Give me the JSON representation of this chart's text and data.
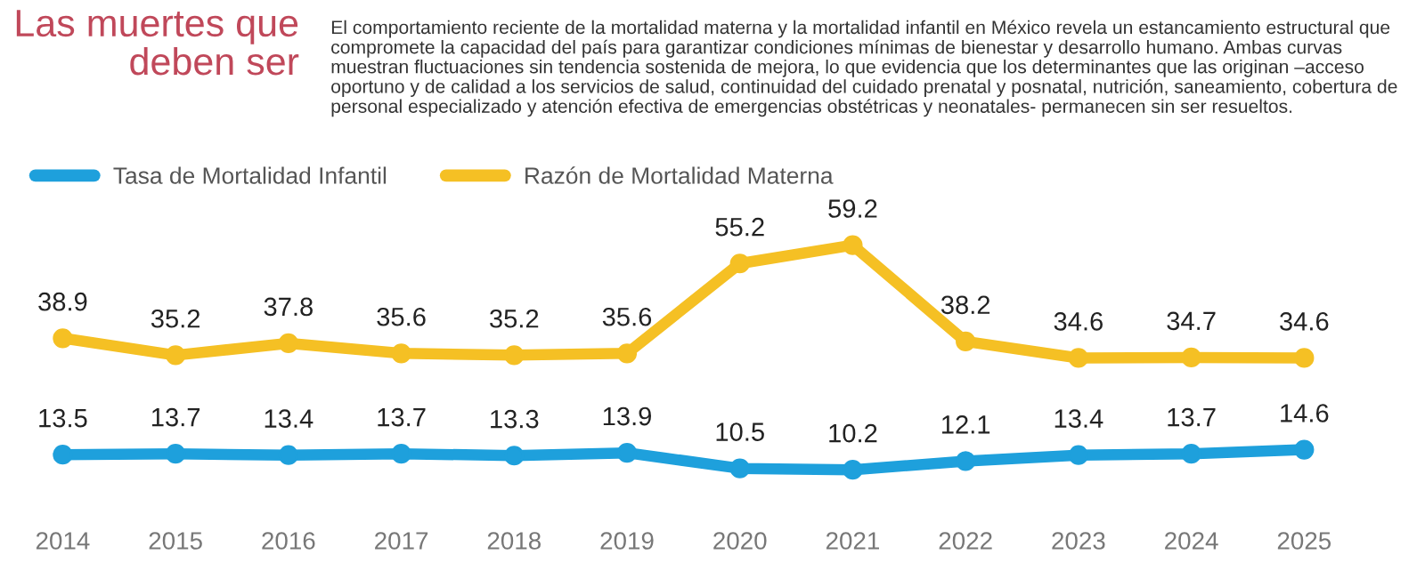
{
  "chart_data": {
    "type": "line",
    "title": "Las muertes que\ndeben ser",
    "annotations": [
      "El comportamiento reciente de la mortalidad materna y la mortalidad infantil en México revela un estancamiento estructural que compromete la capacidad del país para garantizar condiciones mínimas de bienestar y desarrollo humano. Ambas curvas muestran fluctuaciones sin tendencia sostenida de mejora, lo que evidencia que los determinantes que las originan –acceso oportuno y de calidad a los servicios de salud, continuidad del cuidado prenatal y posnatal, nutrición, saneamiento, cobertura de personal especializado y atención efectiva de emergencias obstétricas y neonatales- permanecen sin ser resueltos."
    ],
    "categories": [
      "2014",
      "2015",
      "2016",
      "2017",
      "2018",
      "2019",
      "2020",
      "2021",
      "2022",
      "2023",
      "2024",
      "2025"
    ],
    "series": [
      {
        "name": "Tasa de Mortalidad Infantil",
        "color": "#1ea0dc",
        "values": [
          13.5,
          13.7,
          13.4,
          13.7,
          13.3,
          13.9,
          10.5,
          10.2,
          12.1,
          13.4,
          13.7,
          14.6
        ]
      },
      {
        "name": "Razón de Mortalidad Materna",
        "color": "#f5c024",
        "values": [
          38.9,
          35.2,
          37.8,
          35.6,
          35.2,
          35.6,
          55.2,
          59.2,
          38.2,
          34.6,
          34.7,
          34.6
        ]
      }
    ],
    "data_labels": true,
    "marker": "circle",
    "line_style": "solid",
    "legend": "top left",
    "grid": false,
    "tick_labels": "x"
  }
}
